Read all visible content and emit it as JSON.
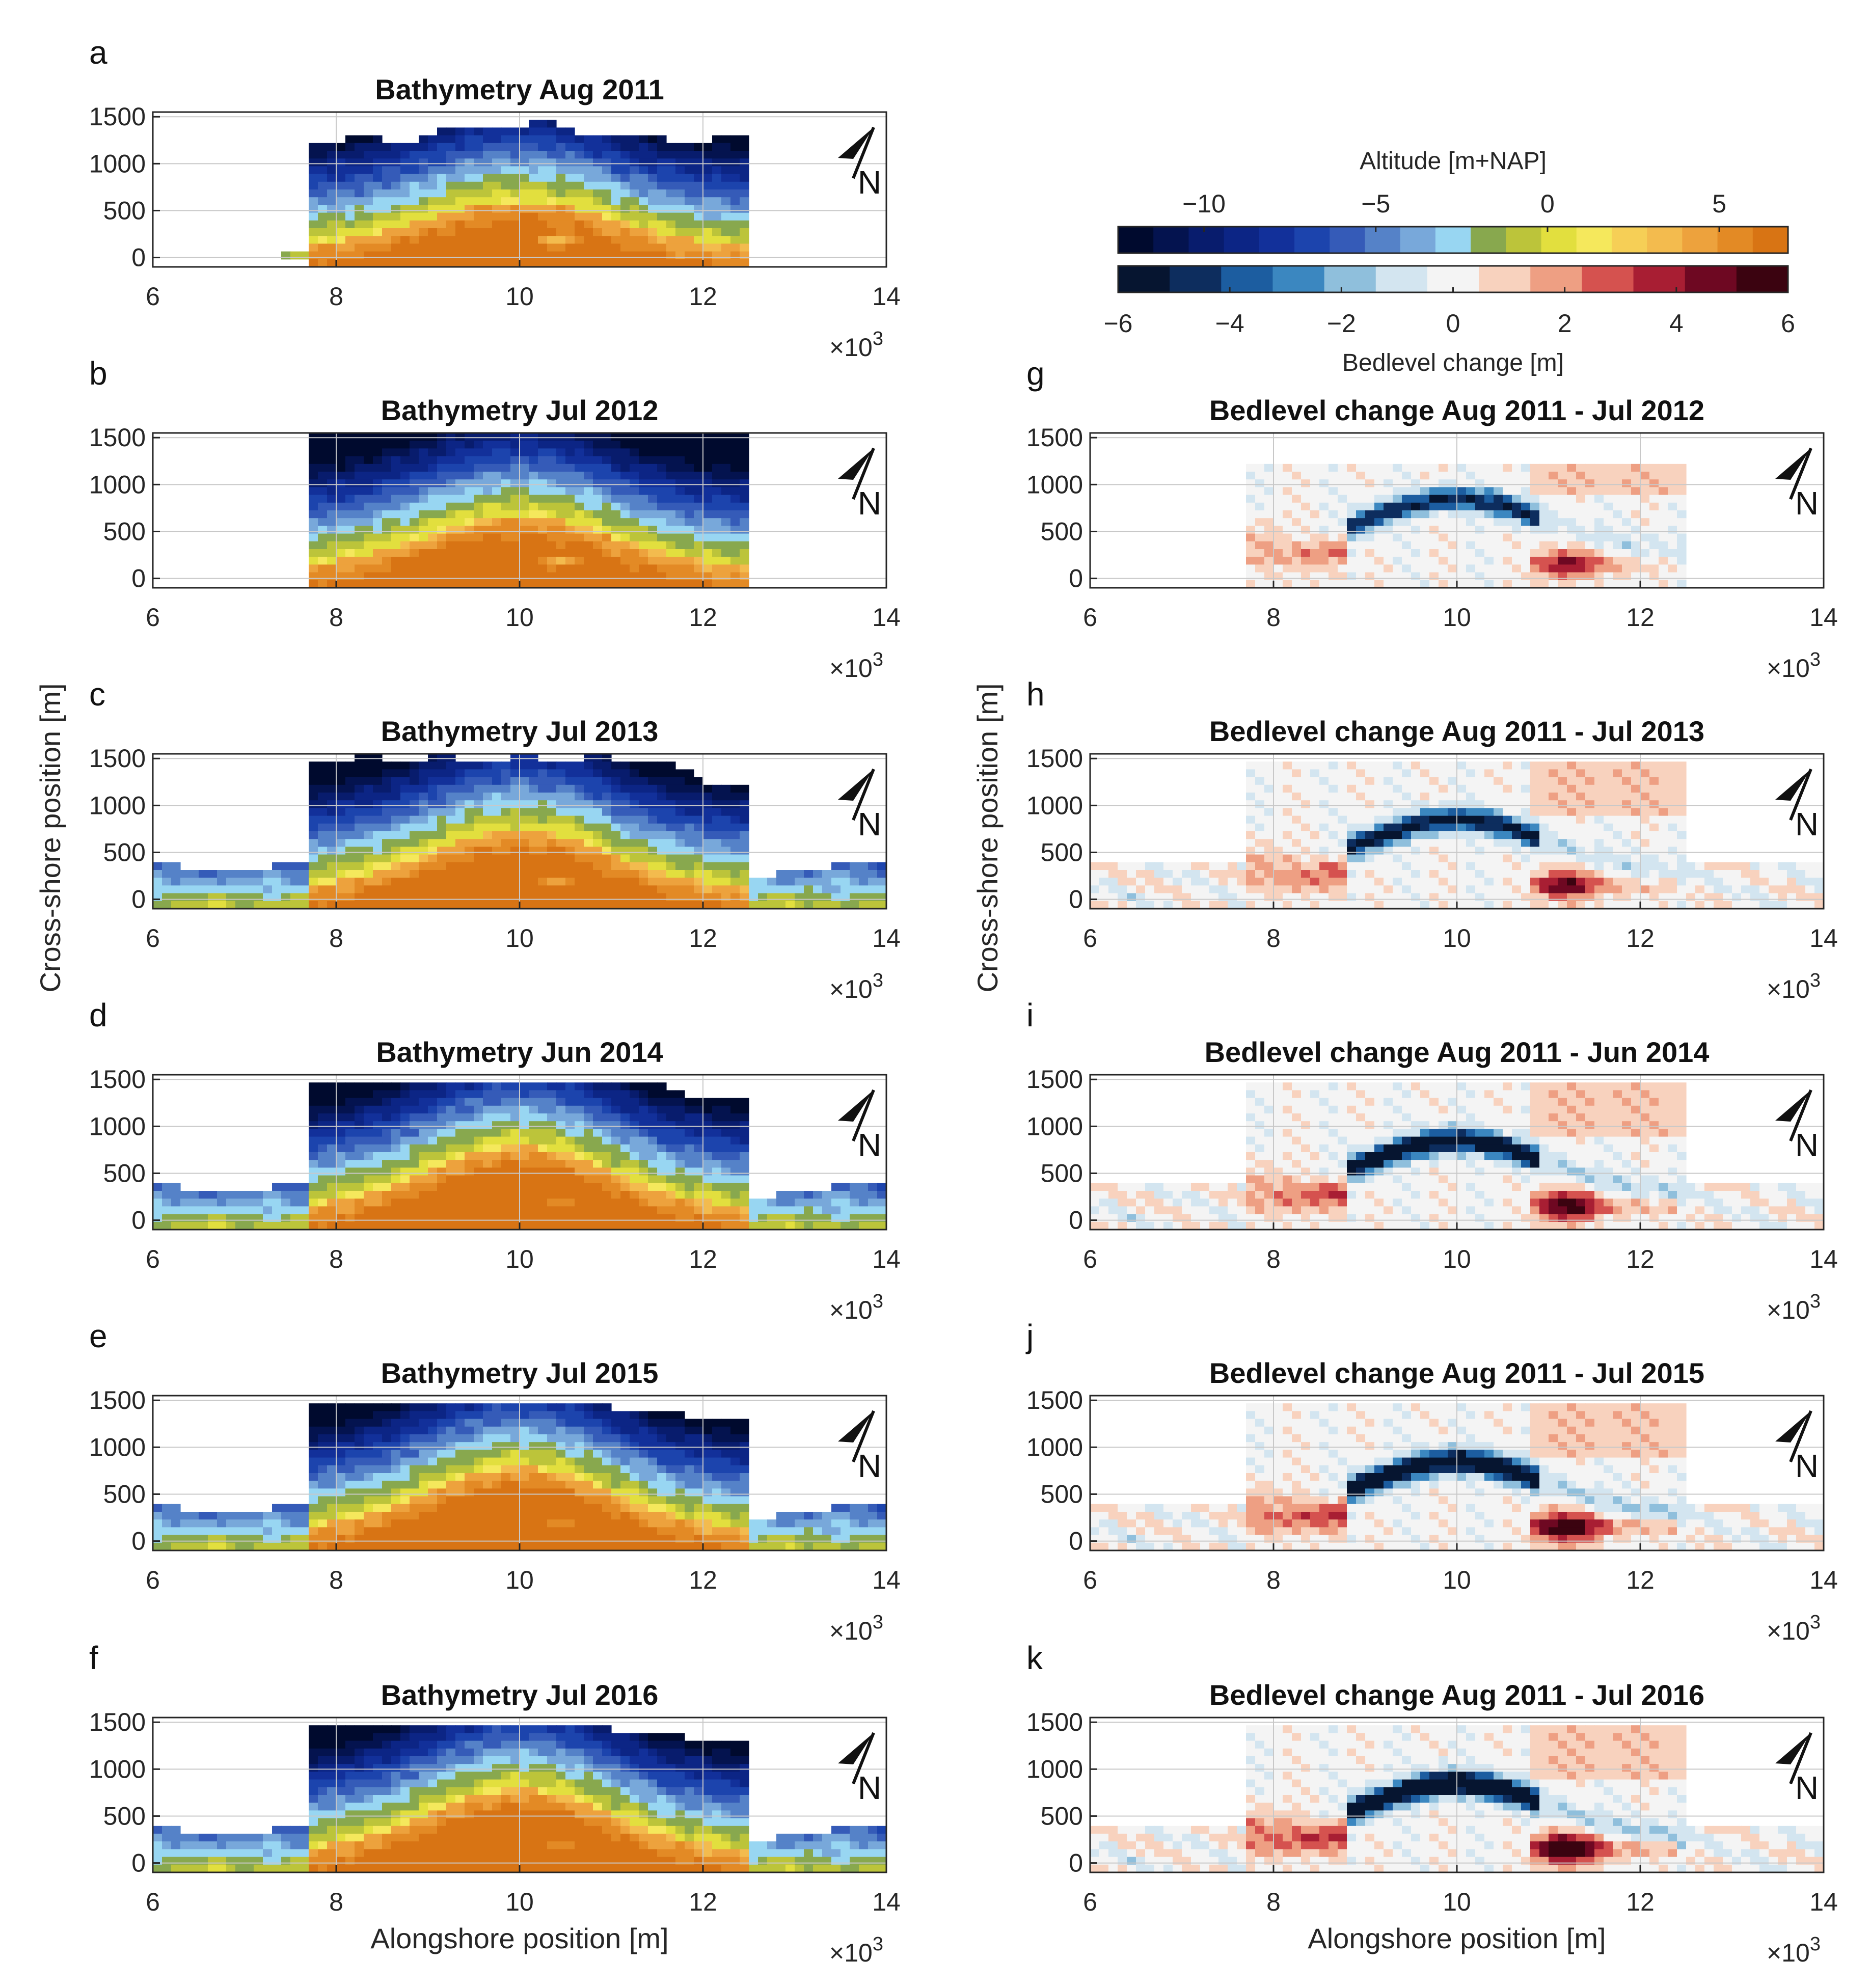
{
  "chart_data": {
    "type": "heatmap",
    "x_label": "Alongshore position [m]",
    "y_label": "Cross-shore position [m]",
    "x_ticks": [
      "6",
      "8",
      "10",
      "12",
      "14"
    ],
    "y_ticks": [
      "1500",
      "1000",
      "500",
      "0"
    ],
    "x_multiplier_base": "×10",
    "x_multiplier_exp": "3",
    "x_range": [
      6000,
      14000
    ],
    "y_range": [
      -100,
      1550
    ],
    "north_label": "N",
    "colorbars": {
      "altitude": {
        "label": "Altitude [m+NAP]",
        "ticks": [
          "−10",
          "−5",
          "0",
          "5"
        ],
        "tick_values": [
          -10,
          -5,
          0,
          5
        ],
        "range": [
          -12.5,
          7
        ],
        "colors": [
          "#000a2e",
          "#04134f",
          "#081c6d",
          "#0c2585",
          "#12309a",
          "#1c44ad",
          "#355bb8",
          "#5582c8",
          "#78a8da",
          "#98d6f2",
          "#88a84e",
          "#bcc43a",
          "#e2df3e",
          "#f5e85c",
          "#f6cf56",
          "#f3bb4e",
          "#eda23d",
          "#e38a25",
          "#d87414"
        ]
      },
      "bedlevel": {
        "label": "Bedlevel change [m]",
        "ticks": [
          "−6",
          "−4",
          "−2",
          "0",
          "2",
          "4",
          "6"
        ],
        "tick_values": [
          -6,
          -4,
          -2,
          0,
          2,
          4,
          6
        ],
        "range": [
          -6,
          6
        ],
        "colors": [
          "#061530",
          "#0d2d5e",
          "#1c5da0",
          "#3b87c0",
          "#8fbfdc",
          "#d3e5f0",
          "#f4f4f4",
          "#f8d2be",
          "#ee9f83",
          "#d5524f",
          "#a81e33",
          "#6e0822",
          "#3b0310"
        ]
      }
    },
    "panels": [
      {
        "letter": "a",
        "title": "Bathymetry Aug 2011",
        "kind": "bathy",
        "variant": 0
      },
      {
        "letter": "b",
        "title": "Bathymetry Jul 2012",
        "kind": "bathy",
        "variant": 1
      },
      {
        "letter": "c",
        "title": "Bathymetry Jul 2013",
        "kind": "bathy",
        "variant": 2
      },
      {
        "letter": "d",
        "title": "Bathymetry Jun 2014",
        "kind": "bathy",
        "variant": 3
      },
      {
        "letter": "e",
        "title": "Bathymetry Jul 2015",
        "kind": "bathy",
        "variant": 4
      },
      {
        "letter": "f",
        "title": "Bathymetry Jul 2016",
        "kind": "bathy",
        "variant": 5
      },
      {
        "letter": "g",
        "title": "Bedlevel change Aug 2011 - Jul 2012",
        "kind": "change",
        "variant": 1
      },
      {
        "letter": "h",
        "title": "Bedlevel change Aug 2011 - Jul 2013",
        "kind": "change",
        "variant": 2
      },
      {
        "letter": "i",
        "title": "Bedlevel change Aug 2011 - Jun 2014",
        "kind": "change",
        "variant": 3
      },
      {
        "letter": "j",
        "title": "Bedlevel change Aug 2011 - Jul 2015",
        "kind": "change",
        "variant": 4
      },
      {
        "letter": "k",
        "title": "Bedlevel change Aug 2011 - Jul 2016",
        "kind": "change",
        "variant": 5
      }
    ]
  }
}
